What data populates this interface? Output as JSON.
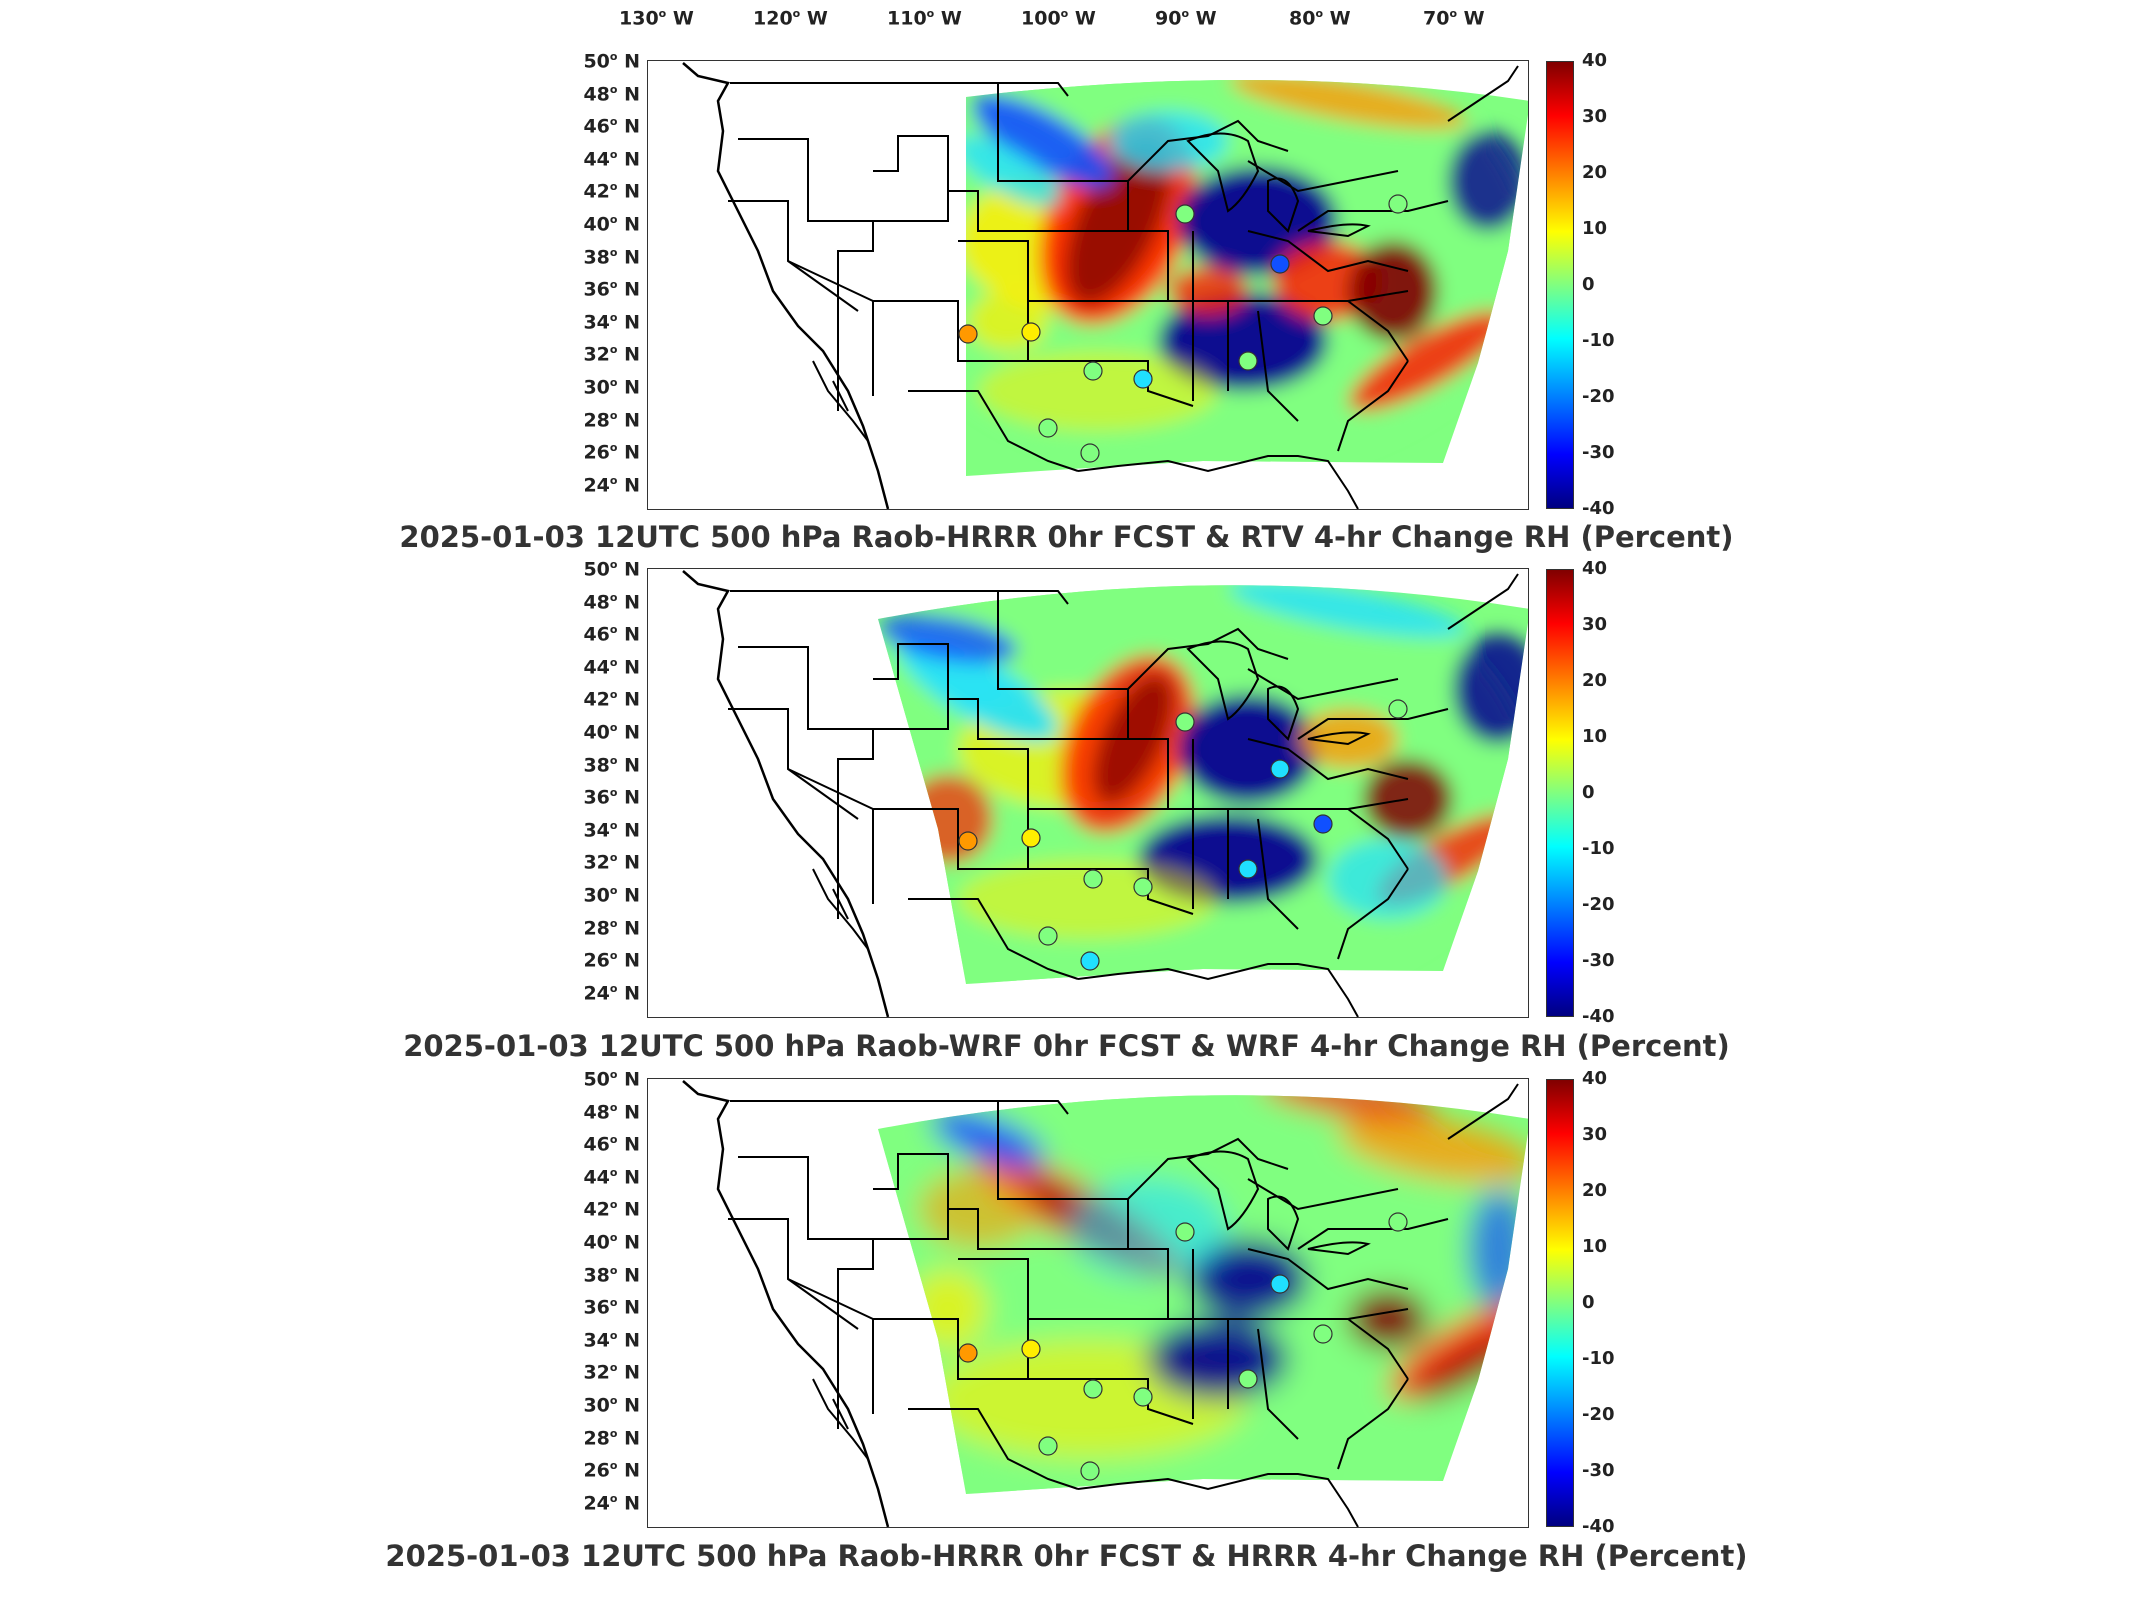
{
  "lon_labels": [
    "130",
    "120",
    "110",
    "100",
    "90",
    "80",
    "70"
  ],
  "lon_suffix": "W",
  "lat_labels": [
    "50",
    "48",
    "46",
    "44",
    "42",
    "40",
    "38",
    "36",
    "34",
    "32",
    "30",
    "28",
    "26",
    "24"
  ],
  "lat_suffix": "N",
  "colorbar_ticks": [
    "40",
    "30",
    "20",
    "10",
    "0",
    "-10",
    "-20",
    "-30",
    "-40"
  ],
  "colorbar_range": [
    -40,
    40
  ],
  "panels": [
    {
      "title": "2025-01-03 12UTC 500 hPa Raob-HRRR 0hr FCST & RTV 4-hr Change RH (Percent)"
    },
    {
      "title": "2025-01-03 12UTC 500 hPa Raob-WRF 0hr FCST & WRF 4-hr Change RH (Percent)"
    },
    {
      "title": "2025-01-03 12UTC 500 hPa Raob-HRRR 0hr FCST & HRRR 4-hr Change RH (Percent)"
    }
  ],
  "colors": {
    "dark_red": "#800000",
    "red": "#ff2000",
    "orange": "#ff9900",
    "yellow": "#ffee00",
    "green": "#80ff80",
    "cyan": "#20e0ff",
    "blue": "#1050ff",
    "dark_blue": "#000090"
  }
}
